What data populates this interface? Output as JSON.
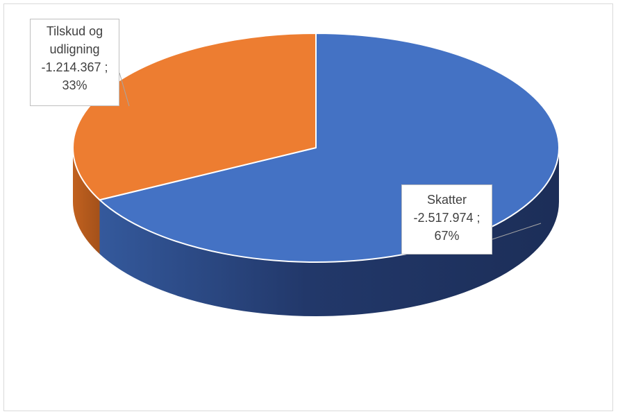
{
  "chart_data": {
    "type": "pie",
    "style": "3d",
    "slices": [
      {
        "name": "Skatter",
        "value": -2517974,
        "value_label": "-2.517.974 ;",
        "percent_label": "67%",
        "percent": 67,
        "color": "#4472c4"
      },
      {
        "name": "Tilskud og udligning",
        "value": -1214367,
        "value_label": "-1.214.367 ;",
        "percent_label": "33%",
        "percent": 33,
        "color": "#ed7d31"
      }
    ],
    "title": "",
    "legend": "none"
  },
  "labels": {
    "tilskud_line1": "Tilskud og",
    "tilskud_line2": "udligning",
    "tilskud_value": "-1.214.367 ;",
    "tilskud_percent": "33%",
    "skatter_name": "Skatter",
    "skatter_value": "-2.517.974 ;",
    "skatter_percent": "67%"
  }
}
